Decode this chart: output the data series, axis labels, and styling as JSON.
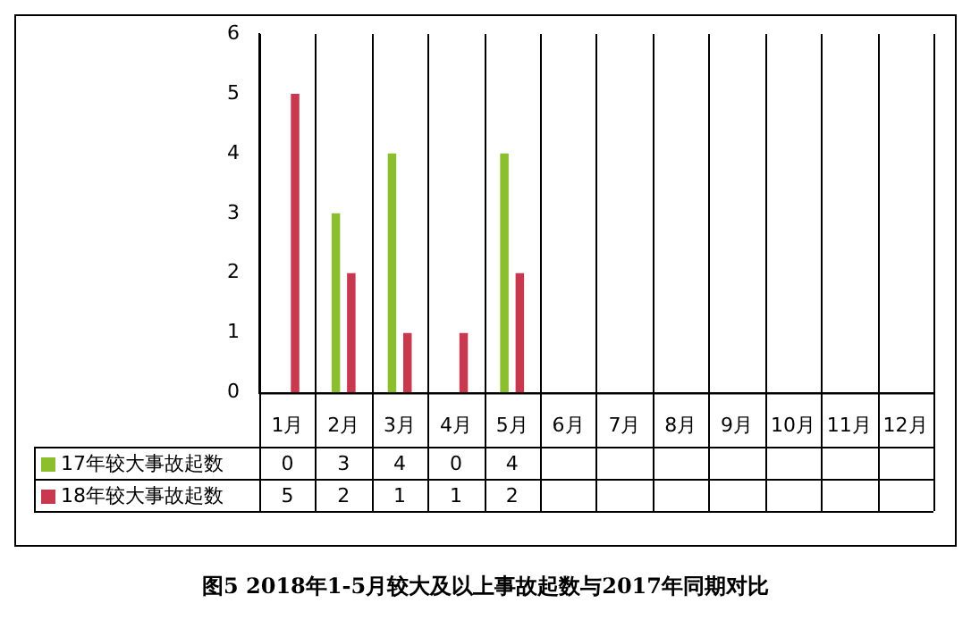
{
  "chart_data": {
    "type": "bar",
    "title": "图5  2018年1-5月较大及以上事故起数与2017年同期对比",
    "categories": [
      "1月",
      "2月",
      "3月",
      "4月",
      "5月",
      "6月",
      "7月",
      "8月",
      "9月",
      "10月",
      "11月",
      "12月"
    ],
    "series": [
      {
        "name": "17年较大事故起数",
        "color": "#8cbf2e",
        "values": [
          0,
          3,
          4,
          0,
          4,
          null,
          null,
          null,
          null,
          null,
          null,
          null
        ]
      },
      {
        "name": "18年较大事故起数",
        "color": "#c8384f",
        "values": [
          5,
          2,
          1,
          1,
          2,
          null,
          null,
          null,
          null,
          null,
          null,
          null
        ]
      }
    ],
    "ylim": [
      0,
      6
    ],
    "yticks": [
      0,
      1,
      2,
      3,
      4,
      5,
      6
    ],
    "grid": "x",
    "legend": "bottom left",
    "data_labels": true
  }
}
